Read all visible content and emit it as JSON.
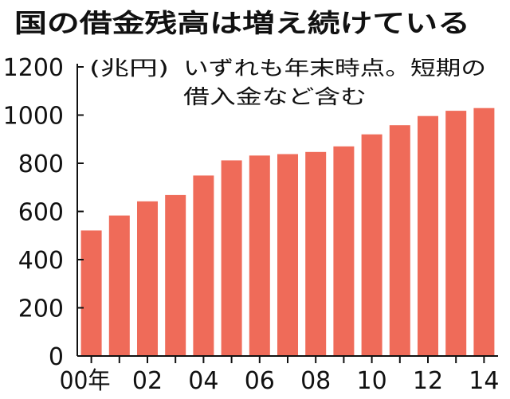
{
  "chart_data": {
    "type": "bar",
    "title": "国の借金残高は増え続けている",
    "unit_label": "(兆円)",
    "note_lines": [
      "いずれも年末時点。短期の",
      "借入金など含む"
    ],
    "categories": [
      "2000",
      "2001",
      "2002",
      "2003",
      "2004",
      "2005",
      "2006",
      "2007",
      "2008",
      "2009",
      "2010",
      "2011",
      "2012",
      "2013",
      "2014"
    ],
    "x_tick_labels": [
      "00年",
      "02",
      "04",
      "06",
      "08",
      "10",
      "12",
      "14"
    ],
    "values": [
      521,
      583,
      642,
      668,
      749,
      812,
      832,
      838,
      847,
      870,
      920,
      958,
      996,
      1018,
      1029
    ],
    "y_ticks": [
      0,
      200,
      400,
      600,
      800,
      1000,
      1200
    ],
    "ylim": [
      0,
      1200
    ],
    "grid": false,
    "bar_color": "#ef6b59"
  }
}
